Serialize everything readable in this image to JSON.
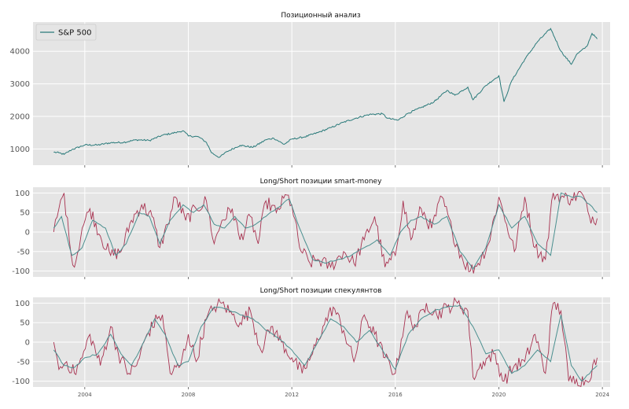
{
  "colors": {
    "sp500": "#2a7a7a",
    "raw": "#a83250",
    "smooth": "#4a8f8f"
  },
  "chart_data": [
    {
      "type": "line",
      "title": "Позиционный анализ",
      "ylim": [
        500,
        4900
      ],
      "yticks": [
        1000,
        2000,
        3000,
        4000
      ],
      "xlim": [
        2002.0,
        2024.3
      ],
      "grid": true,
      "legend_position": "top-left",
      "series": [
        {
          "name": "S&P 500",
          "x": [
            2002.8,
            2003.0,
            2003.2,
            2003.5,
            2004.0,
            2004.5,
            2005.0,
            2005.5,
            2006.0,
            2006.5,
            2007.0,
            2007.5,
            2007.8,
            2008.0,
            2008.4,
            2008.7,
            2008.9,
            2009.2,
            2009.5,
            2010.0,
            2010.5,
            2011.0,
            2011.3,
            2011.7,
            2012.0,
            2012.5,
            2013.0,
            2013.5,
            2014.0,
            2014.5,
            2015.0,
            2015.5,
            2015.7,
            2016.1,
            2016.5,
            2017.0,
            2017.5,
            2018.0,
            2018.3,
            2018.8,
            2019.0,
            2019.5,
            2020.0,
            2020.2,
            2020.5,
            2021.0,
            2021.5,
            2022.0,
            2022.4,
            2022.8,
            2023.0,
            2023.4,
            2023.6,
            2023.8
          ],
          "values": [
            900,
            880,
            830,
            980,
            1120,
            1120,
            1190,
            1200,
            1280,
            1260,
            1420,
            1500,
            1560,
            1400,
            1370,
            1200,
            880,
            740,
            920,
            1110,
            1050,
            1280,
            1330,
            1140,
            1300,
            1370,
            1500,
            1650,
            1820,
            1950,
            2060,
            2080,
            1940,
            1880,
            2100,
            2270,
            2450,
            2800,
            2650,
            2900,
            2510,
            2950,
            3250,
            2450,
            3100,
            3750,
            4300,
            4700,
            4000,
            3600,
            3900,
            4150,
            4550,
            4380
          ]
        }
      ]
    },
    {
      "type": "line",
      "title": "Long/Short позиции smart-money",
      "ylim": [
        -115,
        115
      ],
      "yticks": [
        -100,
        -50,
        0,
        50,
        100
      ],
      "xlim": [
        2002.0,
        2024.3
      ],
      "grid": true,
      "series": [
        {
          "x": [
            2002.8,
            2003.0,
            2003.2,
            2003.4,
            2003.6,
            2003.9,
            2004.2,
            2004.6,
            2005.0,
            2005.4,
            2005.8,
            2006.2,
            2006.6,
            2006.9,
            2007.2,
            2007.5,
            2007.9,
            2008.3,
            2008.7,
            2009.0,
            2009.3,
            2009.7,
            2010.0,
            2010.4,
            2010.7,
            2011.0,
            2011.4,
            2011.8,
            2012.0,
            2012.3,
            2012.7,
            2013.0,
            2013.5,
            2014.0,
            2014.4,
            2014.8,
            2015.2,
            2015.6,
            2016.0,
            2016.3,
            2016.6,
            2017.0,
            2017.4,
            2017.8,
            2018.2,
            2018.6,
            2018.9,
            2019.2,
            2019.6,
            2020.0,
            2020.3,
            2020.6,
            2021.0,
            2021.4,
            2021.8,
            2022.1,
            2022.4,
            2022.8,
            2023.2,
            2023.5,
            2023.8
          ],
          "values": [
            0,
            60,
            100,
            -20,
            -90,
            10,
            60,
            -10,
            -60,
            -50,
            30,
            70,
            40,
            -40,
            20,
            90,
            30,
            60,
            80,
            -30,
            30,
            60,
            -20,
            40,
            -30,
            80,
            50,
            95,
            70,
            -40,
            -80,
            -70,
            -90,
            -50,
            -80,
            -20,
            40,
            -90,
            -60,
            80,
            -20,
            60,
            10,
            90,
            0,
            -70,
            -100,
            -80,
            -30,
            90,
            20,
            -50,
            90,
            -40,
            -70,
            100,
            90,
            85,
            100,
            40,
            35
          ]
        },
        {
          "x": [
            2002.8,
            2003.1,
            2003.5,
            2003.9,
            2004.3,
            2004.8,
            2005.2,
            2005.6,
            2006.1,
            2006.5,
            2006.9,
            2007.3,
            2007.8,
            2008.2,
            2008.6,
            2009.0,
            2009.4,
            2009.8,
            2010.2,
            2010.6,
            2011.0,
            2011.4,
            2011.9,
            2012.3,
            2012.8,
            2013.3,
            2013.8,
            2014.3,
            2014.8,
            2015.3,
            2015.8,
            2016.2,
            2016.6,
            2017.0,
            2017.5,
            2018.0,
            2018.5,
            2019.0,
            2019.5,
            2020.0,
            2020.5,
            2021.0,
            2021.5,
            2022.0,
            2022.4,
            2022.8,
            2023.2,
            2023.8
          ],
          "values": [
            10,
            40,
            -60,
            -40,
            30,
            10,
            -60,
            -30,
            50,
            40,
            -30,
            30,
            70,
            50,
            70,
            20,
            10,
            40,
            10,
            20,
            40,
            60,
            85,
            10,
            -70,
            -80,
            -70,
            -60,
            -40,
            -20,
            -60,
            0,
            30,
            40,
            20,
            40,
            -50,
            -95,
            -40,
            70,
            10,
            40,
            -30,
            -60,
            100,
            90,
            90,
            50
          ]
        }
      ]
    },
    {
      "type": "line",
      "title": "Long/Short позиции спекулянтов",
      "ylim": [
        -115,
        115
      ],
      "yticks": [
        -100,
        -50,
        0,
        50,
        100
      ],
      "xlim": [
        2002.0,
        2024.3
      ],
      "xticks": [
        2004,
        2008,
        2012,
        2016,
        2020,
        2024
      ],
      "grid": true,
      "series": [
        {
          "x": [
            2002.8,
            2003.0,
            2003.3,
            2003.6,
            2003.9,
            2004.2,
            2004.6,
            2005.0,
            2005.3,
            2005.7,
            2006.0,
            2006.4,
            2006.8,
            2007.0,
            2007.3,
            2007.7,
            2008.0,
            2008.3,
            2008.7,
            2009.0,
            2009.3,
            2009.7,
            2010.0,
            2010.4,
            2010.8,
            2011.2,
            2011.6,
            2012.0,
            2012.4,
            2012.8,
            2013.2,
            2013.6,
            2014.0,
            2014.4,
            2014.8,
            2015.2,
            2015.6,
            2016.0,
            2016.4,
            2016.8,
            2017.2,
            2017.6,
            2018.0,
            2018.4,
            2018.8,
            2019.0,
            2019.4,
            2019.8,
            2020.2,
            2020.6,
            2021.0,
            2021.4,
            2021.8,
            2022.1,
            2022.4,
            2022.7,
            2023.0,
            2023.4,
            2023.8
          ],
          "values": [
            0,
            -70,
            -50,
            -80,
            -40,
            20,
            -60,
            40,
            -30,
            -80,
            -60,
            20,
            60,
            70,
            -80,
            -60,
            20,
            -50,
            60,
            90,
            100,
            70,
            50,
            80,
            -20,
            40,
            0,
            -40,
            -80,
            -30,
            40,
            90,
            30,
            -50,
            70,
            20,
            -40,
            -80,
            70,
            40,
            100,
            70,
            90,
            100,
            80,
            -90,
            -50,
            -30,
            -100,
            -60,
            -50,
            20,
            -80,
            100,
            80,
            -100,
            -95,
            -100,
            -40
          ]
        },
        {
          "x": [
            2002.8,
            2003.2,
            2003.6,
            2004.0,
            2004.5,
            2005.0,
            2005.4,
            2005.8,
            2006.2,
            2006.7,
            2007.1,
            2007.6,
            2008.0,
            2008.5,
            2009.0,
            2009.5,
            2010.0,
            2010.5,
            2011.0,
            2011.5,
            2012.0,
            2012.5,
            2013.0,
            2013.5,
            2014.0,
            2014.5,
            2015.0,
            2015.5,
            2016.0,
            2016.5,
            2017.0,
            2017.5,
            2018.0,
            2018.5,
            2019.0,
            2019.5,
            2020.0,
            2020.5,
            2021.0,
            2021.5,
            2022.0,
            2022.4,
            2022.8,
            2023.2,
            2023.8
          ],
          "values": [
            -20,
            -60,
            -65,
            -40,
            -30,
            20,
            -30,
            -60,
            -10,
            60,
            20,
            -60,
            -50,
            40,
            90,
            85,
            70,
            60,
            30,
            10,
            -20,
            -60,
            0,
            60,
            40,
            0,
            30,
            -20,
            -70,
            20,
            60,
            80,
            90,
            95,
            40,
            -30,
            -20,
            -80,
            -60,
            -20,
            -50,
            70,
            -60,
            -100,
            -60
          ]
        }
      ]
    }
  ]
}
